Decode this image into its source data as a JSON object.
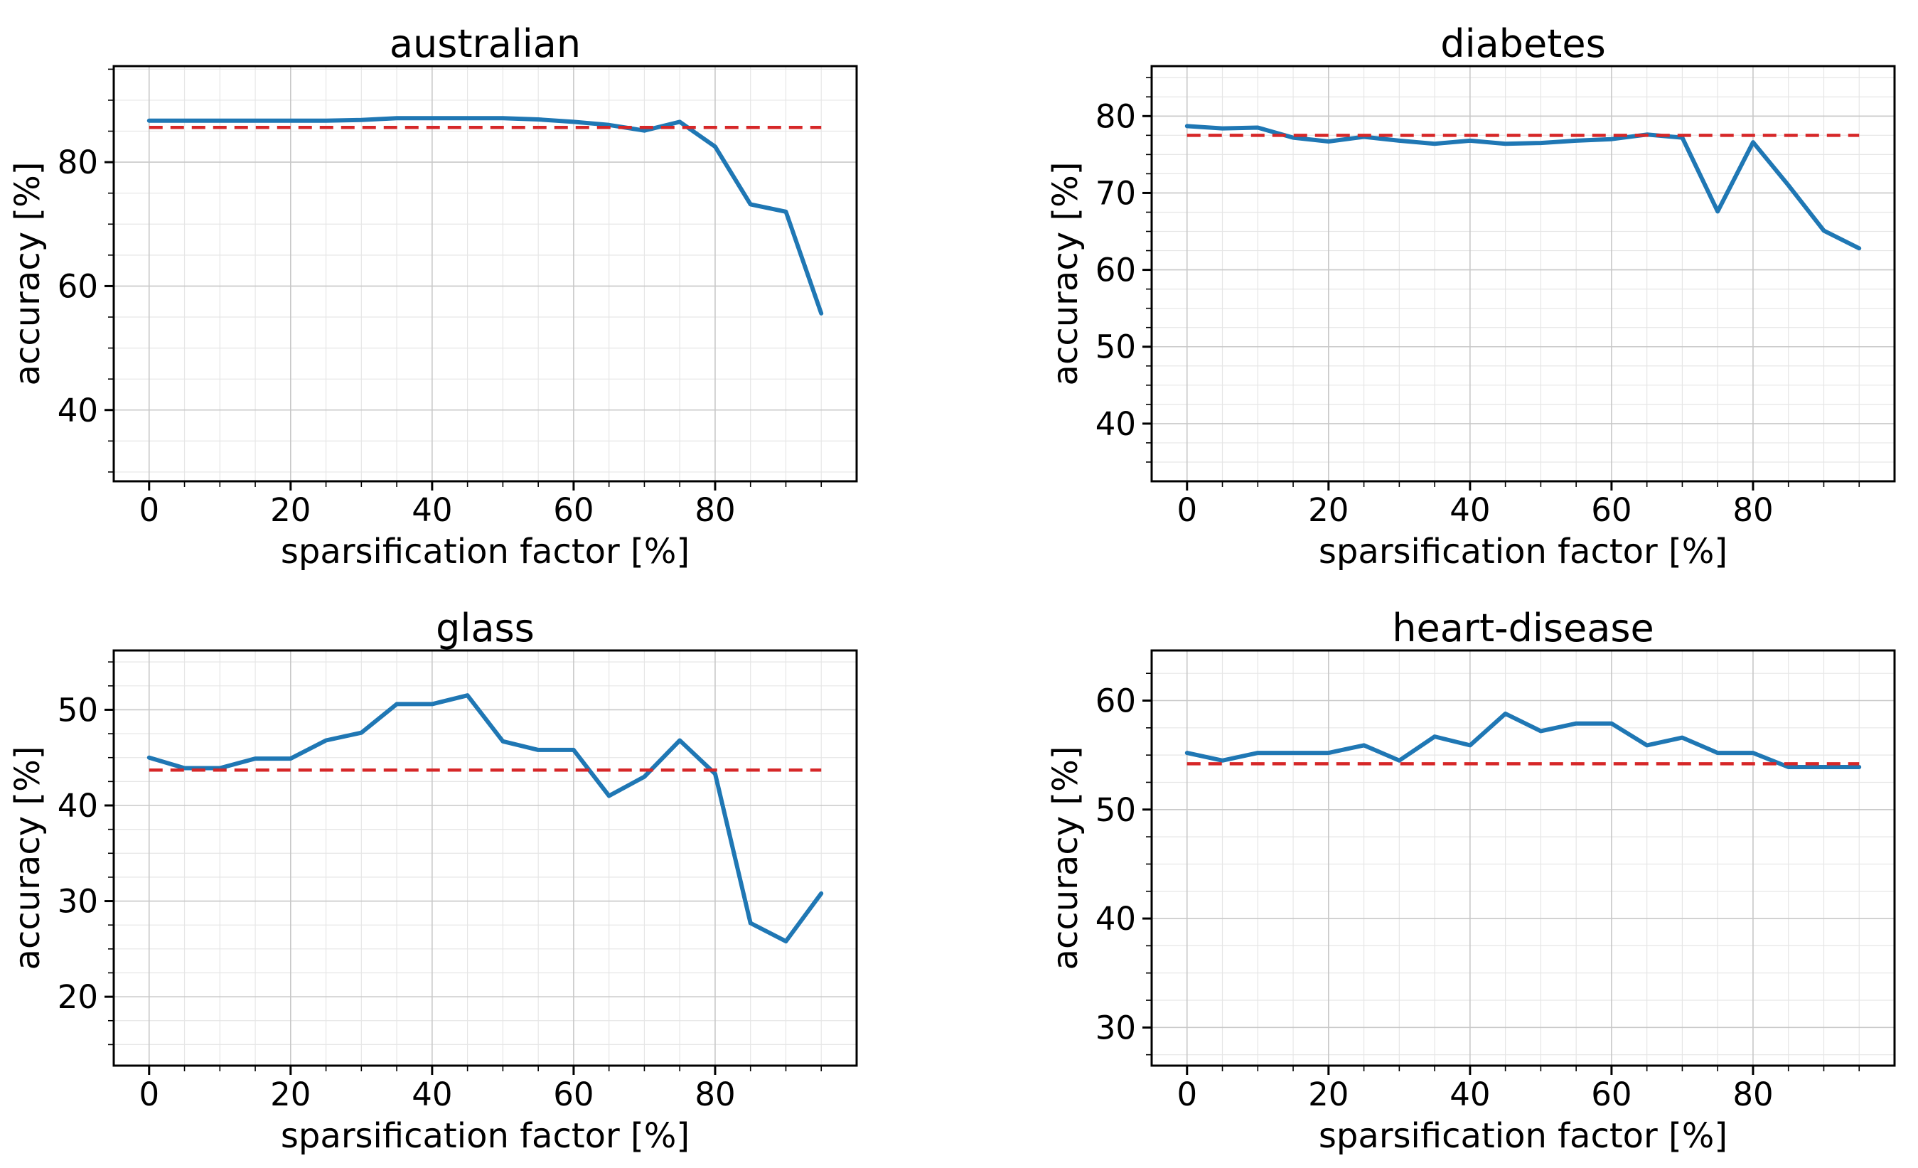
{
  "figure": {
    "background": "#ffffff",
    "text_color": "#000000",
    "series_color": "#1f77b4",
    "baseline_color": "#d62728",
    "grid_major_color": "#c8c8c8",
    "grid_minor_color": "#e6e6e6",
    "spine_color": "#000000",
    "xlabel": "sparsification factor [%]",
    "ylabel": "accuracy [%]"
  },
  "chart_data": [
    {
      "type": "line",
      "title": "australian",
      "xlabel": "sparsification factor [%]",
      "ylabel": "accuracy [%]",
      "x": [
        0,
        5,
        10,
        15,
        20,
        25,
        30,
        35,
        40,
        45,
        50,
        55,
        60,
        65,
        70,
        75,
        80,
        85,
        90,
        95
      ],
      "values": [
        86.7,
        86.7,
        86.7,
        86.7,
        86.7,
        86.7,
        86.8,
        87.1,
        87.1,
        87.1,
        87.1,
        86.9,
        86.5,
        86.0,
        85.1,
        86.5,
        82.5,
        73.2,
        72.0,
        55.6
      ],
      "baseline": 85.6,
      "baseline_span": [
        0,
        95
      ],
      "baseline_style": "dashed",
      "xlim": [
        -5,
        100
      ],
      "ylim": [
        28.5,
        95.5
      ],
      "xticks": [
        0,
        20,
        40,
        60,
        80
      ],
      "yticks": [
        40,
        60,
        80
      ],
      "x_minor_step": 5,
      "y_minor_step": 5,
      "grid": true,
      "legend": false
    },
    {
      "type": "line",
      "title": "diabetes",
      "xlabel": "sparsification factor [%]",
      "ylabel": "accuracy [%]",
      "x": [
        0,
        5,
        10,
        15,
        20,
        25,
        30,
        35,
        40,
        45,
        50,
        55,
        60,
        65,
        70,
        75,
        80,
        85,
        90,
        95
      ],
      "values": [
        78.7,
        78.4,
        78.5,
        77.2,
        76.7,
        77.3,
        76.8,
        76.4,
        76.8,
        76.4,
        76.5,
        76.8,
        77.0,
        77.6,
        77.2,
        67.6,
        76.6,
        71.0,
        65.1,
        62.8
      ],
      "baseline": 77.5,
      "baseline_span": [
        0,
        95
      ],
      "baseline_style": "dashed",
      "xlim": [
        -5,
        100
      ],
      "ylim": [
        32.5,
        86.5
      ],
      "xticks": [
        0,
        20,
        40,
        60,
        80
      ],
      "yticks": [
        40,
        50,
        60,
        70,
        80
      ],
      "x_minor_step": 5,
      "y_minor_step": 2.5,
      "grid": true,
      "legend": false
    },
    {
      "type": "line",
      "title": "glass",
      "xlabel": "sparsification factor [%]",
      "ylabel": "accuracy [%]",
      "x": [
        0,
        5,
        10,
        15,
        20,
        25,
        30,
        35,
        40,
        45,
        50,
        55,
        60,
        65,
        70,
        75,
        80,
        85,
        90,
        95
      ],
      "values": [
        45.0,
        43.9,
        43.9,
        44.9,
        44.9,
        46.8,
        47.6,
        50.6,
        50.6,
        51.5,
        46.7,
        45.8,
        45.8,
        41.0,
        43.0,
        46.8,
        43.3,
        27.7,
        25.8,
        30.8
      ],
      "baseline": 43.7,
      "baseline_span": [
        0,
        95
      ],
      "baseline_style": "dashed",
      "xlim": [
        -5,
        100
      ],
      "ylim": [
        12.8,
        56.2
      ],
      "xticks": [
        0,
        20,
        40,
        60,
        80
      ],
      "yticks": [
        20,
        30,
        40,
        50
      ],
      "x_minor_step": 5,
      "y_minor_step": 2.5,
      "grid": true,
      "legend": false
    },
    {
      "type": "line",
      "title": "heart-disease",
      "xlabel": "sparsification factor [%]",
      "ylabel": "accuracy [%]",
      "x": [
        0,
        5,
        10,
        15,
        20,
        25,
        30,
        35,
        40,
        45,
        50,
        55,
        60,
        65,
        70,
        75,
        80,
        85,
        90,
        95
      ],
      "values": [
        55.2,
        54.5,
        55.2,
        55.2,
        55.2,
        55.9,
        54.5,
        56.7,
        55.9,
        58.8,
        57.2,
        57.9,
        57.9,
        55.9,
        56.6,
        55.2,
        55.2,
        53.9,
        53.9,
        53.9
      ],
      "baseline": 54.2,
      "baseline_span": [
        0,
        95
      ],
      "baseline_style": "dashed",
      "xlim": [
        -5,
        100
      ],
      "ylim": [
        26.5,
        64.6
      ],
      "xticks": [
        0,
        20,
        40,
        60,
        80
      ],
      "yticks": [
        30,
        40,
        50,
        60
      ],
      "x_minor_step": 5,
      "y_minor_step": 2.5,
      "grid": true,
      "legend": false
    }
  ]
}
